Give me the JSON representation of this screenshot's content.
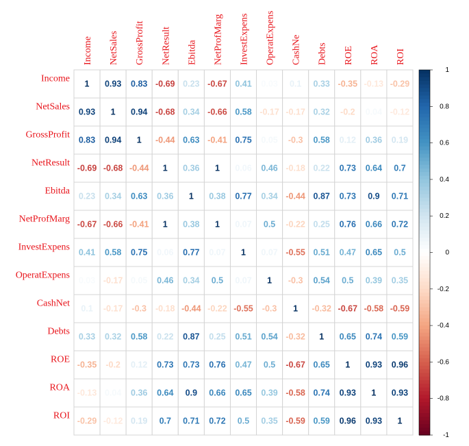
{
  "chart_data": {
    "type": "heatmap",
    "title": "",
    "variables": [
      "Income",
      "NetSales",
      "GrossProfit",
      "NetResult",
      "Ebitda",
      "NetProfMarg",
      "InvestExpens",
      "OperatExpens",
      "CashNet",
      "Debts",
      "ROE",
      "ROA",
      "ROI"
    ],
    "column_labels": [
      "Income",
      "NetSales",
      "GrossProfit",
      "NetResult",
      "Ebitda",
      "NetProfMarg",
      "InvestExpens",
      "OperatExpens",
      "CashNe",
      "Debts",
      "ROE",
      "ROA",
      "ROI"
    ],
    "matrix": [
      [
        1,
        0.93,
        0.83,
        -0.69,
        0.23,
        -0.67,
        0.41,
        0.03,
        0.1,
        0.33,
        -0.35,
        -0.13,
        -0.29
      ],
      [
        0.93,
        1,
        0.94,
        -0.68,
        0.34,
        -0.66,
        0.58,
        -0.17,
        -0.17,
        0.32,
        -0.2,
        0.04,
        -0.12
      ],
      [
        0.83,
        0.94,
        1,
        -0.44,
        0.63,
        -0.41,
        0.75,
        0.05,
        -0.3,
        0.58,
        0.12,
        0.36,
        0.19
      ],
      [
        -0.69,
        -0.68,
        -0.44,
        1,
        0.36,
        1,
        0.06,
        0.46,
        -0.18,
        0.22,
        0.73,
        0.64,
        0.7
      ],
      [
        0.23,
        0.34,
        0.63,
        0.36,
        1,
        0.38,
        0.77,
        0.34,
        -0.44,
        0.87,
        0.73,
        0.9,
        0.71
      ],
      [
        -0.67,
        -0.66,
        -0.41,
        1,
        0.38,
        1,
        0.07,
        0.5,
        -0.22,
        0.25,
        0.76,
        0.66,
        0.72
      ],
      [
        0.41,
        0.58,
        0.75,
        0.06,
        0.77,
        0.07,
        1,
        0.07,
        -0.55,
        0.51,
        0.47,
        0.65,
        0.5
      ],
      [
        0.03,
        -0.17,
        0.05,
        0.46,
        0.34,
        0.5,
        0.07,
        1,
        -0.3,
        0.54,
        0.5,
        0.39,
        0.35
      ],
      [
        0.1,
        -0.17,
        -0.3,
        -0.18,
        -0.44,
        -0.22,
        -0.55,
        -0.3,
        1,
        -0.32,
        -0.67,
        -0.58,
        -0.59
      ],
      [
        0.33,
        0.32,
        0.58,
        0.22,
        0.87,
        0.25,
        0.51,
        0.54,
        -0.32,
        1,
        0.65,
        0.74,
        0.59
      ],
      [
        -0.35,
        -0.2,
        0.12,
        0.73,
        0.73,
        0.76,
        0.47,
        0.5,
        -0.67,
        0.65,
        1,
        0.93,
        0.96
      ],
      [
        -0.13,
        0.04,
        0.36,
        0.64,
        0.9,
        0.66,
        0.65,
        0.39,
        -0.58,
        0.74,
        0.93,
        1,
        0.93
      ],
      [
        -0.29,
        -0.12,
        0.19,
        0.7,
        0.71,
        0.72,
        0.5,
        0.35,
        -0.59,
        0.59,
        0.96,
        0.93,
        1
      ]
    ],
    "colorbar": {
      "range": [
        -1,
        1
      ],
      "ticks": [
        "1",
        "0.8",
        "0.6",
        "0.4",
        "0.2",
        "0",
        "-0.2",
        "-0.4",
        "-0.6",
        "-0.8",
        "-1"
      ],
      "palette": "RdBu"
    },
    "colors": {
      "neg": "#67001f",
      "mid": "#ffffff",
      "pos": "#053061",
      "label": "#e8141b"
    }
  }
}
